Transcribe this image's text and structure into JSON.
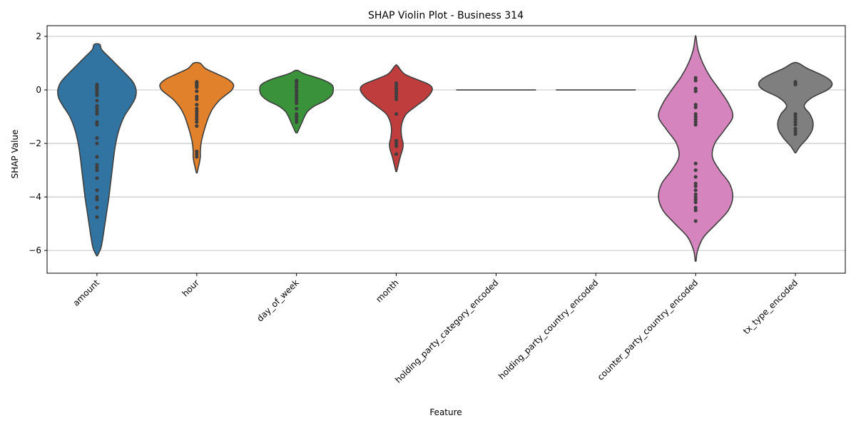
{
  "chart_data": {
    "type": "violin",
    "title": "SHAP Violin Plot - Business 314",
    "xlabel": "Feature",
    "ylabel": "SHAP Value",
    "ylim": [
      -6.85,
      2.4
    ],
    "yticks": [
      2,
      0,
      -2,
      -4,
      -6
    ],
    "grid": "horizontal",
    "categories": [
      "amount",
      "hour",
      "day_of_week",
      "month",
      "holding_party_category_encoded",
      "holding_party_country_encoded",
      "counter_party_country_encoded",
      "tx_type_encoded"
    ],
    "series": [
      {
        "category": "amount",
        "color": "#3274a1",
        "min": -6.2,
        "max": 1.7,
        "density": [
          [
            -6.2,
            0.01
          ],
          [
            -5.9,
            0.1
          ],
          [
            -5.5,
            0.15
          ],
          [
            -5.0,
            0.2
          ],
          [
            -4.5,
            0.25
          ],
          [
            -4.0,
            0.3
          ],
          [
            -3.5,
            0.34
          ],
          [
            -3.0,
            0.38
          ],
          [
            -2.5,
            0.42
          ],
          [
            -2.0,
            0.47
          ],
          [
            -1.5,
            0.55
          ],
          [
            -1.0,
            0.68
          ],
          [
            -0.6,
            0.85
          ],
          [
            -0.3,
            0.96
          ],
          [
            0.0,
            0.98
          ],
          [
            0.3,
            0.9
          ],
          [
            0.6,
            0.72
          ],
          [
            0.9,
            0.52
          ],
          [
            1.2,
            0.32
          ],
          [
            1.5,
            0.12
          ],
          [
            1.7,
            0.07
          ]
        ],
        "points": [
          0.2,
          0.15,
          0.1,
          0.05,
          0.0,
          -0.1,
          -0.2,
          -0.4,
          -0.6,
          -0.7,
          -0.8,
          -0.9,
          -1.2,
          -1.3,
          -1.8,
          -2.0,
          -2.5,
          -2.8,
          -2.9,
          -3.0,
          -3.3,
          -3.75,
          -4.0,
          -4.1,
          -4.4,
          -4.75
        ]
      },
      {
        "category": "hour",
        "color": "#e1812c",
        "min": -3.1,
        "max": 1.0,
        "density": [
          [
            -3.1,
            0.01
          ],
          [
            -2.9,
            0.04
          ],
          [
            -2.7,
            0.07
          ],
          [
            -2.5,
            0.09
          ],
          [
            -2.3,
            0.09
          ],
          [
            -2.1,
            0.1
          ],
          [
            -1.9,
            0.12
          ],
          [
            -1.6,
            0.17
          ],
          [
            -1.3,
            0.23
          ],
          [
            -1.0,
            0.3
          ],
          [
            -0.7,
            0.4
          ],
          [
            -0.4,
            0.56
          ],
          [
            -0.2,
            0.72
          ],
          [
            0.0,
            0.88
          ],
          [
            0.2,
            0.92
          ],
          [
            0.4,
            0.78
          ],
          [
            0.6,
            0.5
          ],
          [
            0.8,
            0.22
          ],
          [
            1.0,
            0.08
          ]
        ],
        "points": [
          0.3,
          0.25,
          0.2,
          0.15,
          0.1,
          -0.05,
          -0.25,
          -0.35,
          -0.55,
          -0.7,
          -0.8,
          -0.9,
          -1.0,
          -1.1,
          -1.2,
          -1.35,
          -2.3,
          -2.4,
          -2.5
        ]
      },
      {
        "category": "day_of_week",
        "color": "#3a923a",
        "min": -1.6,
        "max": 0.72,
        "density": [
          [
            -1.6,
            0.02
          ],
          [
            -1.4,
            0.08
          ],
          [
            -1.2,
            0.14
          ],
          [
            -1.0,
            0.2
          ],
          [
            -0.8,
            0.28
          ],
          [
            -0.6,
            0.45
          ],
          [
            -0.4,
            0.72
          ],
          [
            -0.2,
            0.88
          ],
          [
            0.0,
            0.92
          ],
          [
            0.2,
            0.88
          ],
          [
            0.4,
            0.62
          ],
          [
            0.6,
            0.2
          ],
          [
            0.72,
            0.04
          ]
        ],
        "points": [
          0.35,
          0.3,
          0.2,
          0.1,
          0.0,
          -0.1,
          -0.2,
          -0.3,
          -0.4,
          -0.5,
          -0.7,
          -0.9,
          -1.0,
          -1.1,
          -1.2
        ]
      },
      {
        "category": "month",
        "color": "#c03d3e",
        "min": -3.05,
        "max": 0.9,
        "density": [
          [
            -3.05,
            0.01
          ],
          [
            -2.8,
            0.05
          ],
          [
            -2.5,
            0.1
          ],
          [
            -2.2,
            0.16
          ],
          [
            -2.0,
            0.17
          ],
          [
            -1.8,
            0.14
          ],
          [
            -1.5,
            0.12
          ],
          [
            -1.2,
            0.15
          ],
          [
            -0.9,
            0.25
          ],
          [
            -0.6,
            0.5
          ],
          [
            -0.3,
            0.76
          ],
          [
            0.0,
            0.9
          ],
          [
            0.2,
            0.82
          ],
          [
            0.4,
            0.5
          ],
          [
            0.6,
            0.2
          ],
          [
            0.9,
            0.03
          ]
        ],
        "points": [
          0.25,
          0.15,
          0.05,
          -0.05,
          -0.15,
          -0.25,
          -0.35,
          -0.9,
          -1.9,
          -2.0,
          -2.1,
          -2.4
        ]
      },
      {
        "category": "holding_party_category_encoded",
        "color": "#9372b2",
        "min": 0.0,
        "max": 0.0,
        "density": [],
        "points": []
      },
      {
        "category": "holding_party_country_encoded",
        "color": "#845b53",
        "min": 0.0,
        "max": 0.0,
        "density": [],
        "points": []
      },
      {
        "category": "counter_party_country_encoded",
        "color": "#d684bd",
        "min": -6.4,
        "max": 1.97,
        "density": [
          [
            -6.4,
            0.01
          ],
          [
            -6.0,
            0.05
          ],
          [
            -5.5,
            0.2
          ],
          [
            -5.0,
            0.52
          ],
          [
            -4.5,
            0.82
          ],
          [
            -4.0,
            0.93
          ],
          [
            -3.5,
            0.85
          ],
          [
            -3.0,
            0.6
          ],
          [
            -2.5,
            0.42
          ],
          [
            -2.0,
            0.48
          ],
          [
            -1.5,
            0.72
          ],
          [
            -1.0,
            0.93
          ],
          [
            -0.5,
            0.82
          ],
          [
            0.0,
            0.6
          ],
          [
            0.5,
            0.36
          ],
          [
            1.0,
            0.18
          ],
          [
            1.5,
            0.06
          ],
          [
            1.97,
            0.01
          ]
        ],
        "points": [
          0.45,
          0.35,
          0.05,
          -0.05,
          -0.55,
          -0.65,
          -0.9,
          -1.0,
          -1.1,
          -1.2,
          -1.3,
          -2.75,
          -3.0,
          -3.25,
          -3.5,
          -3.6,
          -3.75,
          -3.9,
          -4.0,
          -4.1,
          -4.2,
          -4.4,
          -4.5,
          -4.9
        ]
      },
      {
        "category": "tx_type_encoded",
        "color": "#7f7f7f",
        "min": -2.35,
        "max": 1.0,
        "density": [
          [
            -2.35,
            0.01
          ],
          [
            -2.1,
            0.12
          ],
          [
            -1.8,
            0.3
          ],
          [
            -1.5,
            0.42
          ],
          [
            -1.2,
            0.44
          ],
          [
            -0.9,
            0.36
          ],
          [
            -0.6,
            0.22
          ],
          [
            -0.3,
            0.4
          ],
          [
            0.0,
            0.8
          ],
          [
            0.2,
            0.92
          ],
          [
            0.4,
            0.84
          ],
          [
            0.6,
            0.6
          ],
          [
            0.8,
            0.3
          ],
          [
            1.0,
            0.07
          ]
        ],
        "points": [
          0.3,
          0.25,
          0.2,
          -0.9,
          -1.0,
          -1.1,
          -1.2,
          -1.3,
          -1.45,
          -1.55,
          -1.65
        ]
      }
    ]
  }
}
